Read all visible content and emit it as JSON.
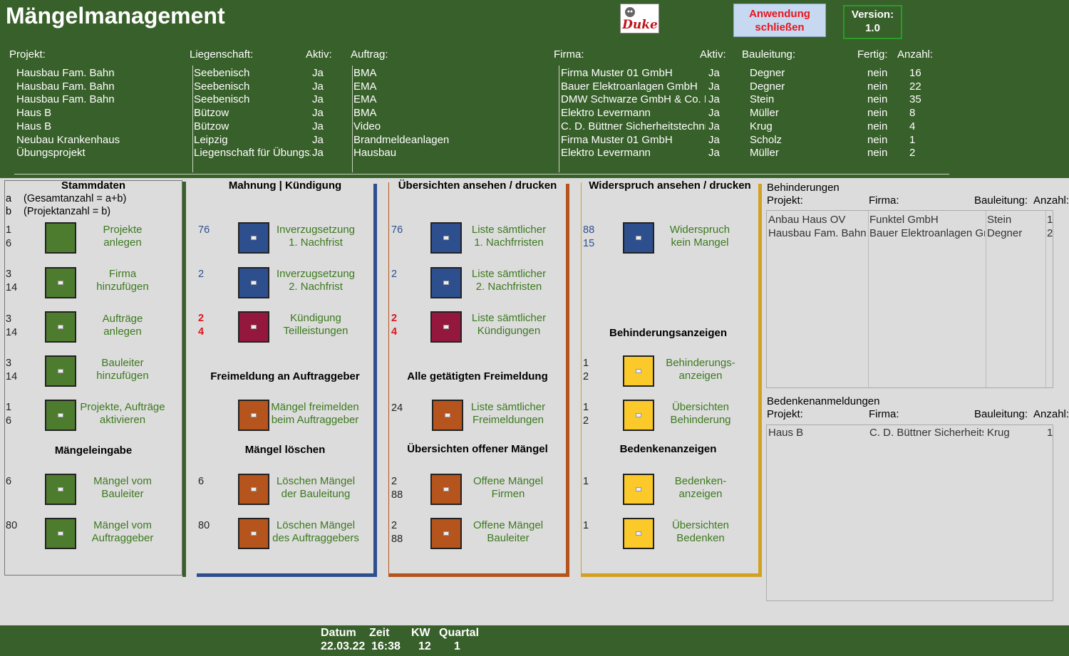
{
  "app": {
    "title": "Mängelmanagement",
    "logo_text": "Duke",
    "close_label_1": "Anwendung",
    "close_label_2": "schließen",
    "version_label": "Version:",
    "version_value": "1.0"
  },
  "header": {
    "projekt": "Projekt:",
    "liegenschaft": "Liegenschaft:",
    "aktiv": "Aktiv:",
    "auftrag": "Auftrag:",
    "firma": "Firma:",
    "aktiv2": "Aktiv:",
    "bauleitung": "Bauleitung:",
    "fertig": "Fertig:",
    "anzahl": "Anzahl:"
  },
  "rows": [
    {
      "projekt": "Hausbau Fam. Bahn",
      "liegenschaft": "Seebenisch",
      "aktiv": "Ja",
      "auftrag": "BMA",
      "firma": "Firma Muster 01 GmbH",
      "aktiv2": "Ja",
      "bauleitung": "Degner",
      "fertig": "nein",
      "anzahl": "16"
    },
    {
      "projekt": "Hausbau Fam. Bahn",
      "liegenschaft": "Seebenisch",
      "aktiv": "Ja",
      "auftrag": "EMA",
      "firma": "Bauer Elektroanlagen GmbH",
      "aktiv2": "Ja",
      "bauleitung": "Degner",
      "fertig": "nein",
      "anzahl": "22"
    },
    {
      "projekt": "Hausbau Fam. Bahn",
      "liegenschaft": "Seebenisch",
      "aktiv": "Ja",
      "auftrag": "EMA",
      "firma": "DMW Schwarze GmbH & Co. KG",
      "aktiv2": "Ja",
      "bauleitung": "Stein",
      "fertig": "nein",
      "anzahl": "35"
    },
    {
      "projekt": "Haus B",
      "liegenschaft": "Bützow",
      "aktiv": "Ja",
      "auftrag": "BMA",
      "firma": "Elektro Levermann",
      "aktiv2": "Ja",
      "bauleitung": "Müller",
      "fertig": "nein",
      "anzahl": "8"
    },
    {
      "projekt": "Haus B",
      "liegenschaft": "Bützow",
      "aktiv": "Ja",
      "auftrag": "Video",
      "firma": "C. D. Büttner Sicherheitstechnik",
      "aktiv2": "Ja",
      "bauleitung": "Krug",
      "fertig": "nein",
      "anzahl": "4"
    },
    {
      "projekt": "Neubau Krankenhaus",
      "liegenschaft": "Leipzig",
      "aktiv": "Ja",
      "auftrag": "Brandmeldeanlagen",
      "firma": "Firma Muster 01 GmbH",
      "aktiv2": "Ja",
      "bauleitung": "Scholz",
      "fertig": "nein",
      "anzahl": "1"
    },
    {
      "projekt": "Übungsprojekt",
      "liegenschaft": "Liegenschaft für Übungszwecke",
      "aktiv": "Ja",
      "auftrag": "Hausbau",
      "firma": "Elektro Levermann",
      "aktiv2": "Ja",
      "bauleitung": "Müller",
      "fertig": "nein",
      "anzahl": "2"
    }
  ],
  "stamm": {
    "title": "Stammdaten",
    "a_key": "a",
    "a_text": "(Gesamtanzahl = a+b)",
    "b_key": "b",
    "b_text": "(Projektanzahl  = b)",
    "items": [
      {
        "c1": "1",
        "c2": "6",
        "l1": "Projekte",
        "l2": "anlegen"
      },
      {
        "c1": "3",
        "c2": "14",
        "l1": "Firma",
        "l2": "hinzufügen"
      },
      {
        "c1": "3",
        "c2": "14",
        "l1": "Aufträge",
        "l2": "anlegen"
      },
      {
        "c1": "3",
        "c2": "14",
        "l1": "Bauleiter",
        "l2": "hinzufügen"
      },
      {
        "c1": "1",
        "c2": "6",
        "l1": "Projekte, Aufträge",
        "l2": "aktivieren"
      }
    ],
    "sub_title": "Mängeleingabe",
    "sub_items": [
      {
        "c1": "6",
        "l1": "Mängel vom",
        "l2": "Bauleiter"
      },
      {
        "c1": "80",
        "l1": "Mängel vom",
        "l2": "Auftraggeber"
      }
    ]
  },
  "mahnung": {
    "title": "Mahnung | Kündigung",
    "items": [
      {
        "c1": "76",
        "c2": "",
        "l1": "Inverzugsetzung",
        "l2": "1. Nachfrist"
      },
      {
        "c1": "2",
        "c2": "",
        "l1": "Inverzugsetzung",
        "l2": "2. Nachfrist"
      },
      {
        "c1": "2",
        "c2": "4",
        "l1": "Kündigung",
        "l2": "Teilleistungen"
      }
    ],
    "frei_title": "Freimeldung an Auftraggeber",
    "frei": {
      "l1": "Mängel freimelden",
      "l2": "beim Auftraggeber"
    },
    "loeschen_title": "Mängel löschen",
    "loeschen": [
      {
        "c1": "6",
        "l1": "Löschen Mängel",
        "l2": "der Bauleitung"
      },
      {
        "c1": "80",
        "l1": "Löschen Mängel",
        "l2": "des Auftraggebers"
      }
    ]
  },
  "uebersicht": {
    "title": "Übersichten ansehen / drucken",
    "items": [
      {
        "c1": "76",
        "c2": "",
        "l1": "Liste sämtlicher",
        "l2": "1. Nachfrristen"
      },
      {
        "c1": "2",
        "c2": "",
        "l1": "Liste sämtlicher",
        "l2": "2. Nachfristen"
      },
      {
        "c1": "2",
        "c2": "4",
        "l1": "Liste sämtlicher",
        "l2": "Kündigungen"
      }
    ],
    "frei_title": "Alle getätigten Freimeldung",
    "frei": {
      "c1": "24",
      "l1": "Liste sämtlicher",
      "l2": "Freimeldungen"
    },
    "offen_title": "Übersichten offener Mängel",
    "offen": [
      {
        "c1": "2",
        "c2": "88",
        "l1": "Offene Mängel",
        "l2": "Firmen"
      },
      {
        "c1": "2",
        "c2": "88",
        "l1": "Offene Mängel",
        "l2": "Bauleiter"
      }
    ]
  },
  "widerspruch": {
    "title": "Widerspruch ansehen / drucken",
    "item": {
      "c1": "88",
      "c2": "15",
      "l1": "Widerspruch",
      "l2": "kein Mangel"
    },
    "beh_title": "Behinderungsanzeigen",
    "beh": [
      {
        "c1": "1",
        "c2": "2",
        "l1": "Behinderungs-",
        "l2": "anzeigen"
      },
      {
        "c1": "1",
        "c2": "2",
        "l1": "Übersichten",
        "l2": "Behinderung"
      }
    ],
    "bed_title": "Bedenkenanzeigen",
    "bed": [
      {
        "c1": "1",
        "l1": "Bedenken-",
        "l2": "anzeigen"
      },
      {
        "c1": "1",
        "l1": "Übersichten",
        "l2": "Bedenken"
      }
    ]
  },
  "behinderungen": {
    "title": "Behinderungen",
    "h_projekt": "Projekt:",
    "h_firma": "Firma:",
    "h_bauleitung": "Bauleitung:",
    "h_anzahl": "Anzahl:",
    "rows": [
      {
        "projekt": "Anbau Haus OV",
        "firma": "Funktel GmbH",
        "bauleitung": "Stein",
        "anzahl": "1"
      },
      {
        "projekt": "Hausbau Fam. Bahn",
        "firma": "Bauer Elektroanlagen GmbH",
        "bauleitung": "Degner",
        "anzahl": "2"
      }
    ]
  },
  "bedenken": {
    "title": "Bedenkenanmeldungen",
    "h_projekt": "Projekt:",
    "h_firma": "Firma:",
    "h_bauleitung": "Bauleitung:",
    "h_anzahl": "Anzahl:",
    "rows": [
      {
        "projekt": "Haus B",
        "firma": "C. D. Büttner Sicherheitstechnik",
        "bauleitung": "Krug",
        "anzahl": "1"
      }
    ]
  },
  "footer": {
    "datum_label": "Datum",
    "zeit_label": "Zeit",
    "kw_label": "KW",
    "quartal_label": "Quartal",
    "datum": "22.03.22",
    "zeit": "16:38",
    "kw": "12",
    "quartal": "1"
  },
  "colors": {
    "green": "#38602a",
    "button_green": "#4d7c2e",
    "button_blue": "#2d4f8e",
    "button_red": "#94173e",
    "button_orange": "#b5541c",
    "button_yellow": "#fbc92a"
  }
}
